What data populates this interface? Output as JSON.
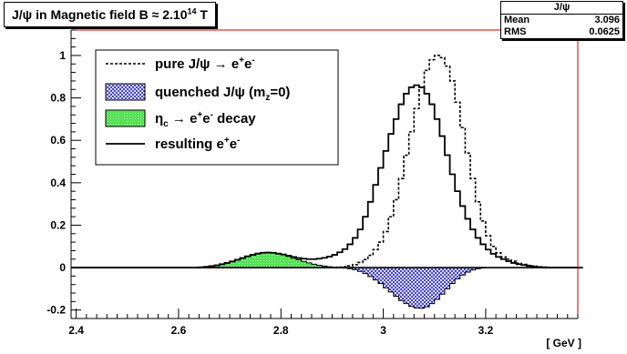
{
  "title": {
    "prefix": "J/ψ in Magnetic field B ≈ 2.10",
    "exponent": "14",
    "suffix": " T"
  },
  "stats": {
    "name": "J/ψ",
    "mean_label": "Mean",
    "mean_value": "3.096",
    "rms_label": "RMS",
    "rms_value": "0.0625"
  },
  "chart_data": {
    "type": "histogram",
    "title": "J/ψ in Magnetic field B ≈ 2.10^14 T",
    "xlabel": "[ GeV ]",
    "ylabel": "",
    "xlim": [
      2.39,
      3.38
    ],
    "ylim": [
      -0.24,
      1.12
    ],
    "grid": false,
    "x_ticks": [
      "2.4",
      "2.6",
      "2.8",
      "3",
      "3.2"
    ],
    "y_ticks": [
      "-0.2",
      "0",
      "0.2",
      "0.4",
      "0.6",
      "0.8",
      "1"
    ],
    "legend_placement": "top-left",
    "legend": [
      {
        "style": "dotted-line",
        "parts": [
          {
            "t": "pure J/ψ → e"
          },
          {
            "t": "+",
            "s": "sup"
          },
          {
            "t": "e"
          },
          {
            "t": "-",
            "s": "sup"
          }
        ]
      },
      {
        "style": "blue-hatched-fill",
        "parts": [
          {
            "t": "quenched J/ψ (m"
          },
          {
            "t": "z",
            "s": "sub"
          },
          {
            "t": "=0)"
          }
        ]
      },
      {
        "style": "green-fill",
        "parts": [
          {
            "t": "η"
          },
          {
            "t": "c",
            "s": "sub"
          },
          {
            "t": " → e"
          },
          {
            "t": "+",
            "s": "sup"
          },
          {
            "t": "e"
          },
          {
            "t": "-",
            "s": "sup"
          },
          {
            "t": " decay"
          }
        ]
      },
      {
        "style": "solid-line",
        "parts": [
          {
            "t": "resulting e"
          },
          {
            "t": "+",
            "s": "sup"
          },
          {
            "t": "e"
          },
          {
            "t": "-",
            "s": "sup"
          }
        ]
      }
    ],
    "bin_width": 0.01,
    "x_start": 2.39,
    "series": [
      {
        "key": "pure",
        "values": [
          0,
          0,
          0,
          0,
          0,
          0,
          0,
          0,
          0,
          0,
          0,
          0,
          0,
          0,
          0,
          0,
          0,
          0,
          0,
          0,
          0,
          0,
          0,
          0,
          0,
          0,
          0,
          0,
          0,
          0,
          0,
          0,
          0,
          0,
          0,
          0,
          0,
          0,
          0,
          0,
          0,
          0,
          0,
          0,
          0,
          0,
          0,
          0,
          0,
          0,
          0,
          0,
          0.002,
          0.004,
          0.008,
          0.014,
          0.024,
          0.038,
          0.058,
          0.085,
          0.12,
          0.17,
          0.24,
          0.32,
          0.42,
          0.53,
          0.64,
          0.75,
          0.85,
          0.93,
          0.98,
          1.0,
          0.99,
          0.95,
          0.88,
          0.78,
          0.66,
          0.54,
          0.42,
          0.31,
          0.22,
          0.15,
          0.1,
          0.07,
          0.05,
          0.04,
          0.03,
          0.02,
          0.015,
          0.01,
          0.007,
          0.004,
          0.002,
          0.001,
          0,
          0,
          0,
          0,
          0
        ]
      },
      {
        "key": "quenched",
        "values": [
          0,
          0,
          0,
          0,
          0,
          0,
          0,
          0,
          0,
          0,
          0,
          0,
          0,
          0,
          0,
          0,
          0,
          0,
          0,
          0,
          0,
          0,
          0,
          0,
          0,
          0,
          0,
          0,
          0,
          0,
          0,
          0,
          0,
          0,
          0,
          0,
          0,
          0,
          0,
          0,
          0,
          0,
          0,
          0,
          0,
          0,
          0,
          0,
          0,
          0,
          0,
          0,
          0,
          -0.002,
          -0.005,
          -0.01,
          -0.018,
          -0.028,
          -0.042,
          -0.058,
          -0.075,
          -0.095,
          -0.115,
          -0.135,
          -0.155,
          -0.17,
          -0.183,
          -0.19,
          -0.192,
          -0.185,
          -0.17,
          -0.15,
          -0.125,
          -0.1,
          -0.075,
          -0.053,
          -0.035,
          -0.021,
          -0.011,
          -0.005,
          -0.002,
          0,
          0,
          0,
          0,
          0,
          0,
          0,
          0,
          0,
          0,
          0,
          0,
          0,
          0,
          0,
          0,
          0,
          0,
          0
        ]
      },
      {
        "key": "etac",
        "values": [
          0,
          0,
          0,
          0,
          0,
          0,
          0,
          0,
          0,
          0,
          0,
          0,
          0,
          0,
          0,
          0,
          0,
          0,
          0,
          0,
          0,
          0,
          0,
          0,
          0,
          0.002,
          0.004,
          0.007,
          0.011,
          0.016,
          0.022,
          0.029,
          0.037,
          0.045,
          0.053,
          0.06,
          0.066,
          0.07,
          0.071,
          0.07,
          0.066,
          0.06,
          0.053,
          0.045,
          0.037,
          0.029,
          0.022,
          0.016,
          0.011,
          0.007,
          0.004,
          0.002,
          0.001,
          0,
          0,
          0,
          0,
          0,
          0,
          0,
          0,
          0,
          0,
          0,
          0,
          0,
          0,
          0,
          0,
          0,
          0,
          0,
          0,
          0,
          0,
          0,
          0,
          0,
          0,
          0,
          0,
          0,
          0,
          0,
          0,
          0,
          0,
          0,
          0,
          0,
          0,
          0,
          0,
          0,
          0,
          0,
          0,
          0,
          0
        ]
      },
      {
        "key": "resulting",
        "values": [
          0,
          0,
          0,
          0,
          0,
          0,
          0,
          0,
          0,
          0,
          0,
          0,
          0,
          0,
          0,
          0,
          0,
          0,
          0,
          0,
          0,
          0,
          0,
          0,
          0,
          0.002,
          0.004,
          0.007,
          0.011,
          0.016,
          0.022,
          0.029,
          0.037,
          0.045,
          0.053,
          0.06,
          0.066,
          0.07,
          0.071,
          0.07,
          0.066,
          0.062,
          0.056,
          0.05,
          0.045,
          0.042,
          0.04,
          0.04,
          0.042,
          0.046,
          0.052,
          0.06,
          0.072,
          0.087,
          0.11,
          0.14,
          0.18,
          0.24,
          0.31,
          0.39,
          0.47,
          0.55,
          0.63,
          0.7,
          0.77,
          0.82,
          0.85,
          0.86,
          0.85,
          0.82,
          0.77,
          0.7,
          0.62,
          0.53,
          0.44,
          0.36,
          0.29,
          0.23,
          0.18,
          0.14,
          0.11,
          0.085,
          0.065,
          0.05,
          0.04,
          0.03,
          0.022,
          0.016,
          0.012,
          0.008,
          0.005,
          0.003,
          0.001,
          0,
          0,
          0,
          0,
          0,
          0,
          0
        ]
      }
    ]
  }
}
